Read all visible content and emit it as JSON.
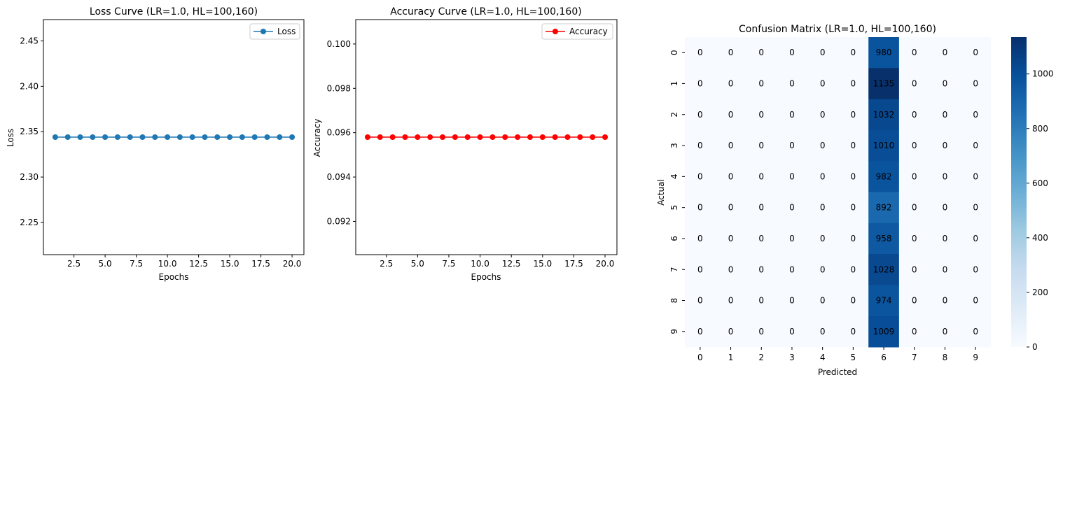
{
  "chart_data": [
    {
      "type": "line",
      "title": "Loss Curve (LR=1.0, HL=100,160)",
      "xlabel": "Epochs",
      "ylabel": "Loss",
      "xlim": [
        0.05,
        20.95
      ],
      "ylim": [
        2.2145,
        2.4735
      ],
      "xticks": [
        2.5,
        5.0,
        7.5,
        10.0,
        12.5,
        15.0,
        17.5,
        20.0
      ],
      "xtick_labels": [
        "2.5",
        "5.0",
        "7.5",
        "10.0",
        "12.5",
        "15.0",
        "17.5",
        "20.0"
      ],
      "yticks": [
        2.25,
        2.3,
        2.35,
        2.4,
        2.45
      ],
      "ytick_labels": [
        "2.25",
        "2.30",
        "2.35",
        "2.40",
        "2.45"
      ],
      "legend": "top-right",
      "grid": false,
      "series": [
        {
          "name": "Loss",
          "color": "#1f77b4",
          "marker": "circle",
          "x": [
            1,
            2,
            3,
            4,
            5,
            6,
            7,
            8,
            9,
            10,
            11,
            12,
            13,
            14,
            15,
            16,
            17,
            18,
            19,
            20
          ],
          "y": [
            2.344,
            2.344,
            2.344,
            2.344,
            2.344,
            2.344,
            2.344,
            2.344,
            2.344,
            2.344,
            2.344,
            2.344,
            2.344,
            2.344,
            2.344,
            2.344,
            2.344,
            2.344,
            2.344,
            2.344
          ]
        }
      ]
    },
    {
      "type": "line",
      "title": "Accuracy Curve (LR=1.0, HL=100,160)",
      "xlabel": "Epochs",
      "ylabel": "Accuracy",
      "xlim": [
        0.05,
        20.95
      ],
      "ylim": [
        0.0905,
        0.1011
      ],
      "xticks": [
        2.5,
        5.0,
        7.5,
        10.0,
        12.5,
        15.0,
        17.5,
        20.0
      ],
      "xtick_labels": [
        "2.5",
        "5.0",
        "7.5",
        "10.0",
        "12.5",
        "15.0",
        "17.5",
        "20.0"
      ],
      "yticks": [
        0.092,
        0.094,
        0.096,
        0.098,
        0.1
      ],
      "ytick_labels": [
        "0.092",
        "0.094",
        "0.096",
        "0.098",
        "0.100"
      ],
      "legend": "top-right",
      "grid": false,
      "series": [
        {
          "name": "Accuracy",
          "color": "#ff0000",
          "marker": "circle",
          "x": [
            1,
            2,
            3,
            4,
            5,
            6,
            7,
            8,
            9,
            10,
            11,
            12,
            13,
            14,
            15,
            16,
            17,
            18,
            19,
            20
          ],
          "y": [
            0.0958,
            0.0958,
            0.0958,
            0.0958,
            0.0958,
            0.0958,
            0.0958,
            0.0958,
            0.0958,
            0.0958,
            0.0958,
            0.0958,
            0.0958,
            0.0958,
            0.0958,
            0.0958,
            0.0958,
            0.0958,
            0.0958,
            0.0958
          ]
        }
      ]
    },
    {
      "type": "heatmap",
      "title": "Confusion Matrix (LR=1.0, HL=100,160)",
      "xlabel": "Predicted",
      "ylabel": "Actual",
      "x_categories": [
        "0",
        "1",
        "2",
        "3",
        "4",
        "5",
        "6",
        "7",
        "8",
        "9"
      ],
      "y_categories": [
        "0",
        "1",
        "2",
        "3",
        "4",
        "5",
        "6",
        "7",
        "8",
        "9"
      ],
      "colormap": "Blues",
      "vmin": 0,
      "vmax": 1135,
      "colorbar_ticks": [
        0,
        200,
        400,
        600,
        800,
        1000
      ],
      "colorbar_tick_labels": [
        "0",
        "200",
        "400",
        "600",
        "800",
        "1000"
      ],
      "values": [
        [
          0,
          0,
          0,
          0,
          0,
          0,
          980,
          0,
          0,
          0
        ],
        [
          0,
          0,
          0,
          0,
          0,
          0,
          1135,
          0,
          0,
          0
        ],
        [
          0,
          0,
          0,
          0,
          0,
          0,
          1032,
          0,
          0,
          0
        ],
        [
          0,
          0,
          0,
          0,
          0,
          0,
          1010,
          0,
          0,
          0
        ],
        [
          0,
          0,
          0,
          0,
          0,
          0,
          982,
          0,
          0,
          0
        ],
        [
          0,
          0,
          0,
          0,
          0,
          0,
          892,
          0,
          0,
          0
        ],
        [
          0,
          0,
          0,
          0,
          0,
          0,
          958,
          0,
          0,
          0
        ],
        [
          0,
          0,
          0,
          0,
          0,
          0,
          1028,
          0,
          0,
          0
        ],
        [
          0,
          0,
          0,
          0,
          0,
          0,
          974,
          0,
          0,
          0
        ],
        [
          0,
          0,
          0,
          0,
          0,
          0,
          1009,
          0,
          0,
          0
        ]
      ]
    }
  ]
}
